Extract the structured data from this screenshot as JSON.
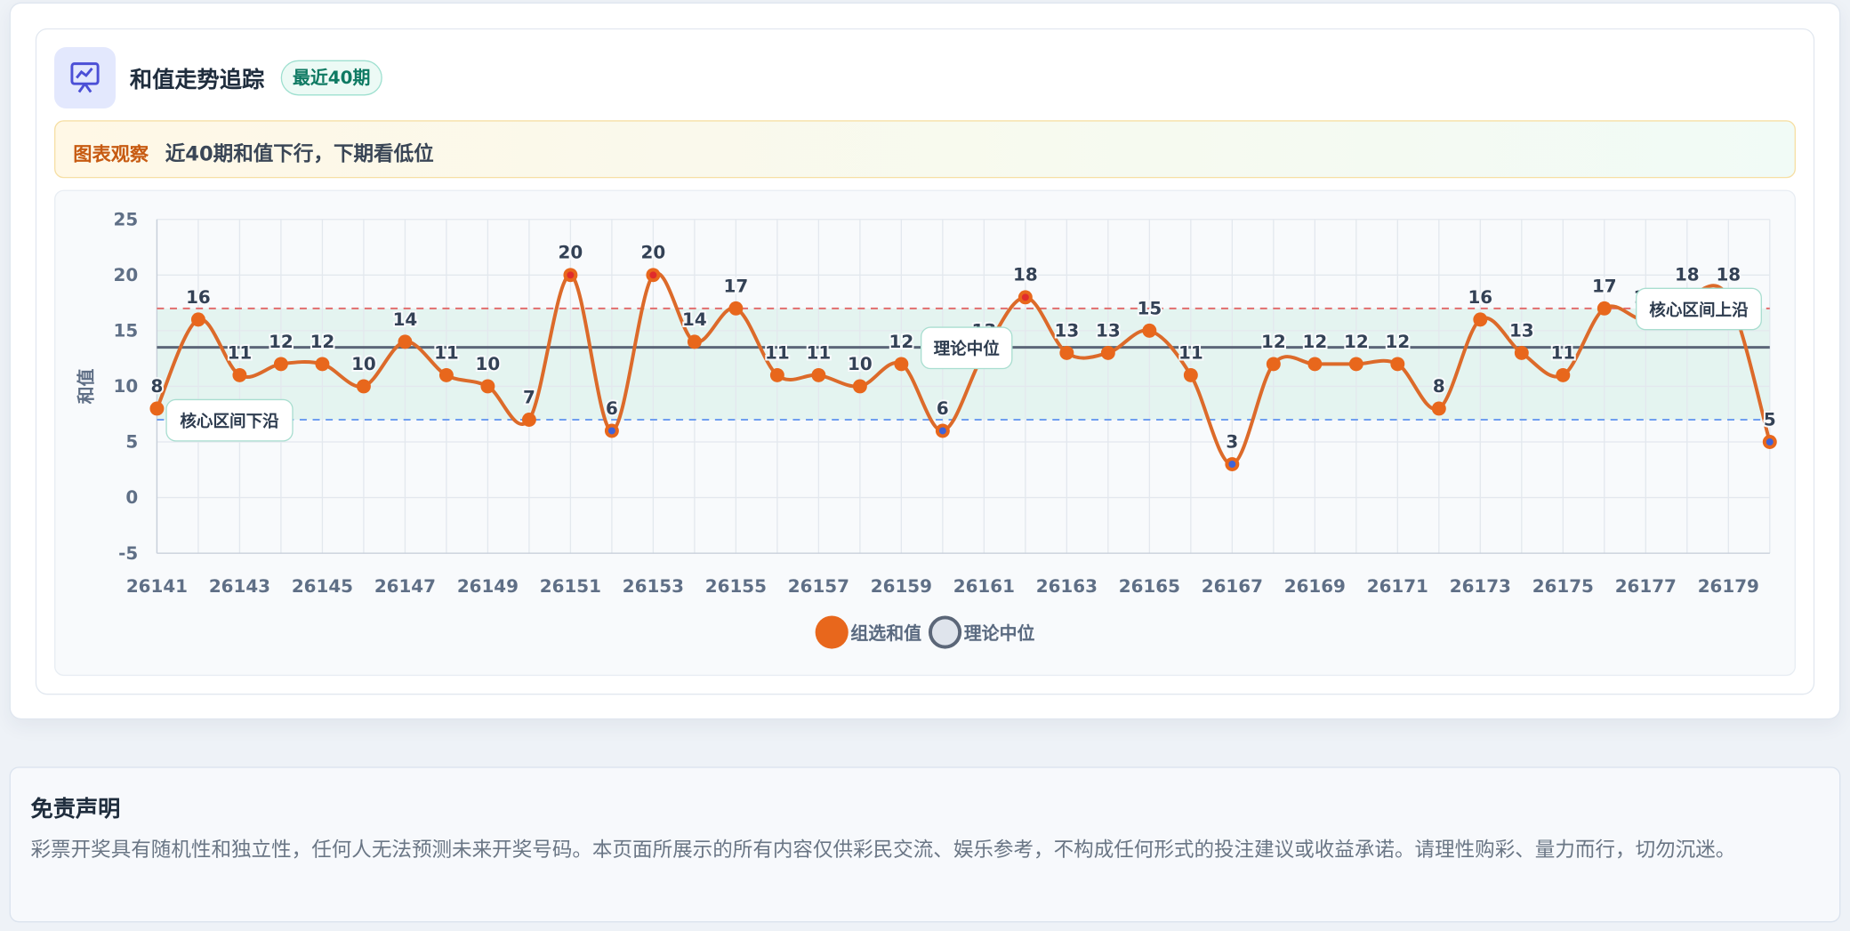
{
  "header": {
    "title": "和值走势追踪",
    "badge": "最近40期"
  },
  "observation": {
    "label": "图表观察",
    "text": "近40期和值下行，下期看低位"
  },
  "chart_data": {
    "type": "line",
    "y_label": "和值",
    "categories": [
      "26141",
      null,
      "26143",
      null,
      "26145",
      null,
      "26147",
      null,
      "26149",
      null,
      "26151",
      null,
      "26153",
      null,
      "26155",
      null,
      "26157",
      null,
      "26159",
      null,
      "26161",
      null,
      "26163",
      null,
      "26165",
      null,
      "26167",
      null,
      "26169",
      null,
      "26171",
      null,
      "26173",
      null,
      "26175",
      null,
      "26177",
      null,
      "26179",
      null
    ],
    "series": [
      {
        "name": "组选和值",
        "color": "#e8671c",
        "values": [
          8,
          16,
          11,
          12,
          12,
          10,
          14,
          11,
          10,
          7,
          20,
          6,
          20,
          14,
          17,
          11,
          11,
          10,
          12,
          6,
          13,
          18,
          13,
          13,
          15,
          11,
          3,
          12,
          12,
          12,
          12,
          8,
          16,
          13,
          11,
          17,
          16,
          18,
          18,
          5
        ]
      }
    ],
    "reference_lines": [
      {
        "label": "核心区间上沿",
        "value": 17,
        "color": "#e26d6d"
      },
      {
        "label": "核心区间下沿",
        "value": 7,
        "color": "#6f9ef0"
      },
      {
        "label": "理论中位",
        "value": 13.5,
        "color": "#5b6678"
      }
    ],
    "ylim": [
      -5,
      25
    ],
    "yticks": [
      -5,
      0,
      5,
      10,
      15,
      20,
      25
    ],
    "grid": true
  },
  "disclaimer": {
    "title": "免责声明",
    "text": "彩票开奖具有随机性和独立性，任何人无法预测未来开奖号码。本页面所展示的所有内容仅供彩民交流、娱乐参考，不构成任何形式的投注建议或收益承诺。请理性购彩、量力而行，切勿沉迷。"
  }
}
